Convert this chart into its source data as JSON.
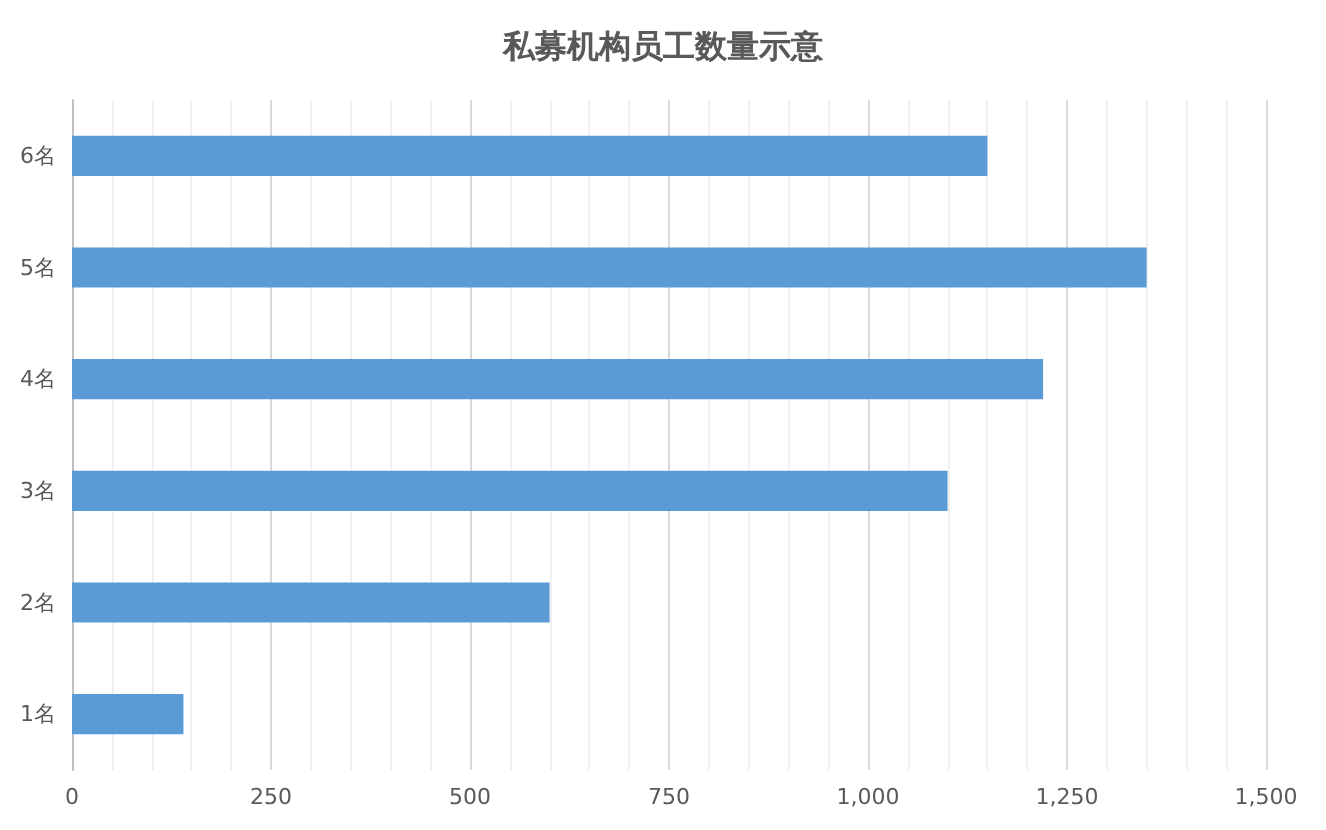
{
  "chart_data": {
    "type": "bar",
    "orientation": "horizontal",
    "title": "私募机构员工数量示意",
    "categories": [
      "6名",
      "5名",
      "4名",
      "3名",
      "2名",
      "1名"
    ],
    "values": [
      1150,
      1350,
      1220,
      1100,
      600,
      140
    ],
    "color": "#5b9bd5",
    "xlim": [
      0,
      1500
    ],
    "xticks": [
      0,
      250,
      500,
      750,
      {
        "value": 1000,
        "label": "1,000"
      },
      {
        "value": 1250,
        "label": "1,250"
      },
      {
        "value": 1500,
        "label": "1,500"
      }
    ],
    "grid": "x"
  }
}
